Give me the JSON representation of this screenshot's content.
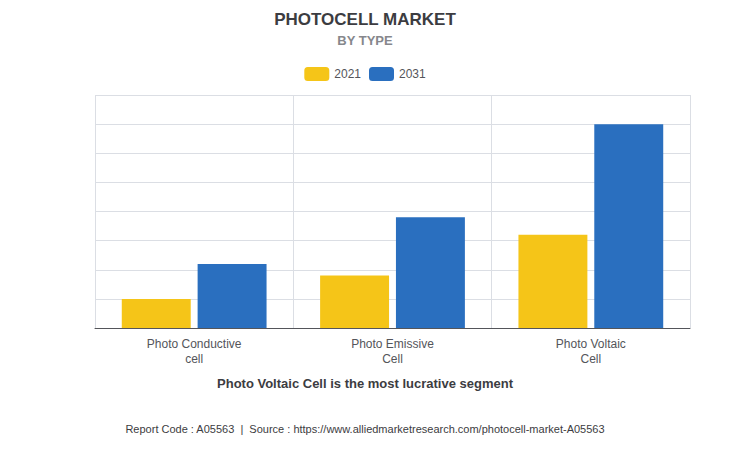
{
  "chart_data": {
    "type": "bar",
    "title": "PHOTOCELL MARKET",
    "subtitle": "BY TYPE",
    "categories": [
      "Photo Conductive\ncell",
      "Photo Emissive\nCell",
      "Photo Voltaic\nCell"
    ],
    "series": [
      {
        "name": "2021",
        "color": "#F5C518",
        "values": [
          1.0,
          1.8,
          3.2
        ]
      },
      {
        "name": "2031",
        "color": "#2A6FBF",
        "values": [
          2.2,
          3.8,
          7.0
        ]
      }
    ],
    "ylim": [
      0,
      8
    ],
    "yticks": [
      0,
      1,
      2,
      3,
      4,
      5,
      6,
      7,
      8
    ],
    "grid": true,
    "legend": "top",
    "tick_labels": "x",
    "annotations": [
      "Photo Voltaic Cell is the most lucrative segment",
      "Report Code : A05563  |  Source : https://www.alliedmarketresearch.com/photocell-market-A05563"
    ]
  }
}
